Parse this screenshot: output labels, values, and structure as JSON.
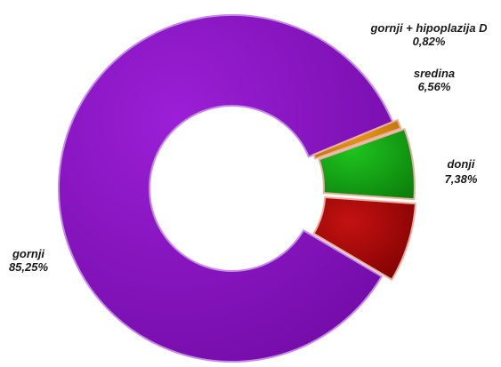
{
  "chart_data": {
    "type": "pie",
    "variant": "donut",
    "exploded": true,
    "slices": [
      {
        "label": "gornji",
        "value": 85.25,
        "value_label": "85,25%",
        "color": "#9b1fd6",
        "dark": "#6f0aa3"
      },
      {
        "label": "donji",
        "value": 7.38,
        "value_label": "7,38%",
        "color": "#c41111",
        "dark": "#7a0000"
      },
      {
        "label": "sredina",
        "value": 6.56,
        "value_label": "6,56%",
        "color": "#1fc31f",
        "dark": "#0b7d0b"
      },
      {
        "label": "gornji + hipoplazija D",
        "value": 0.82,
        "value_label": "0,82%",
        "color": "#f0a020",
        "dark": "#b46b00"
      }
    ]
  }
}
